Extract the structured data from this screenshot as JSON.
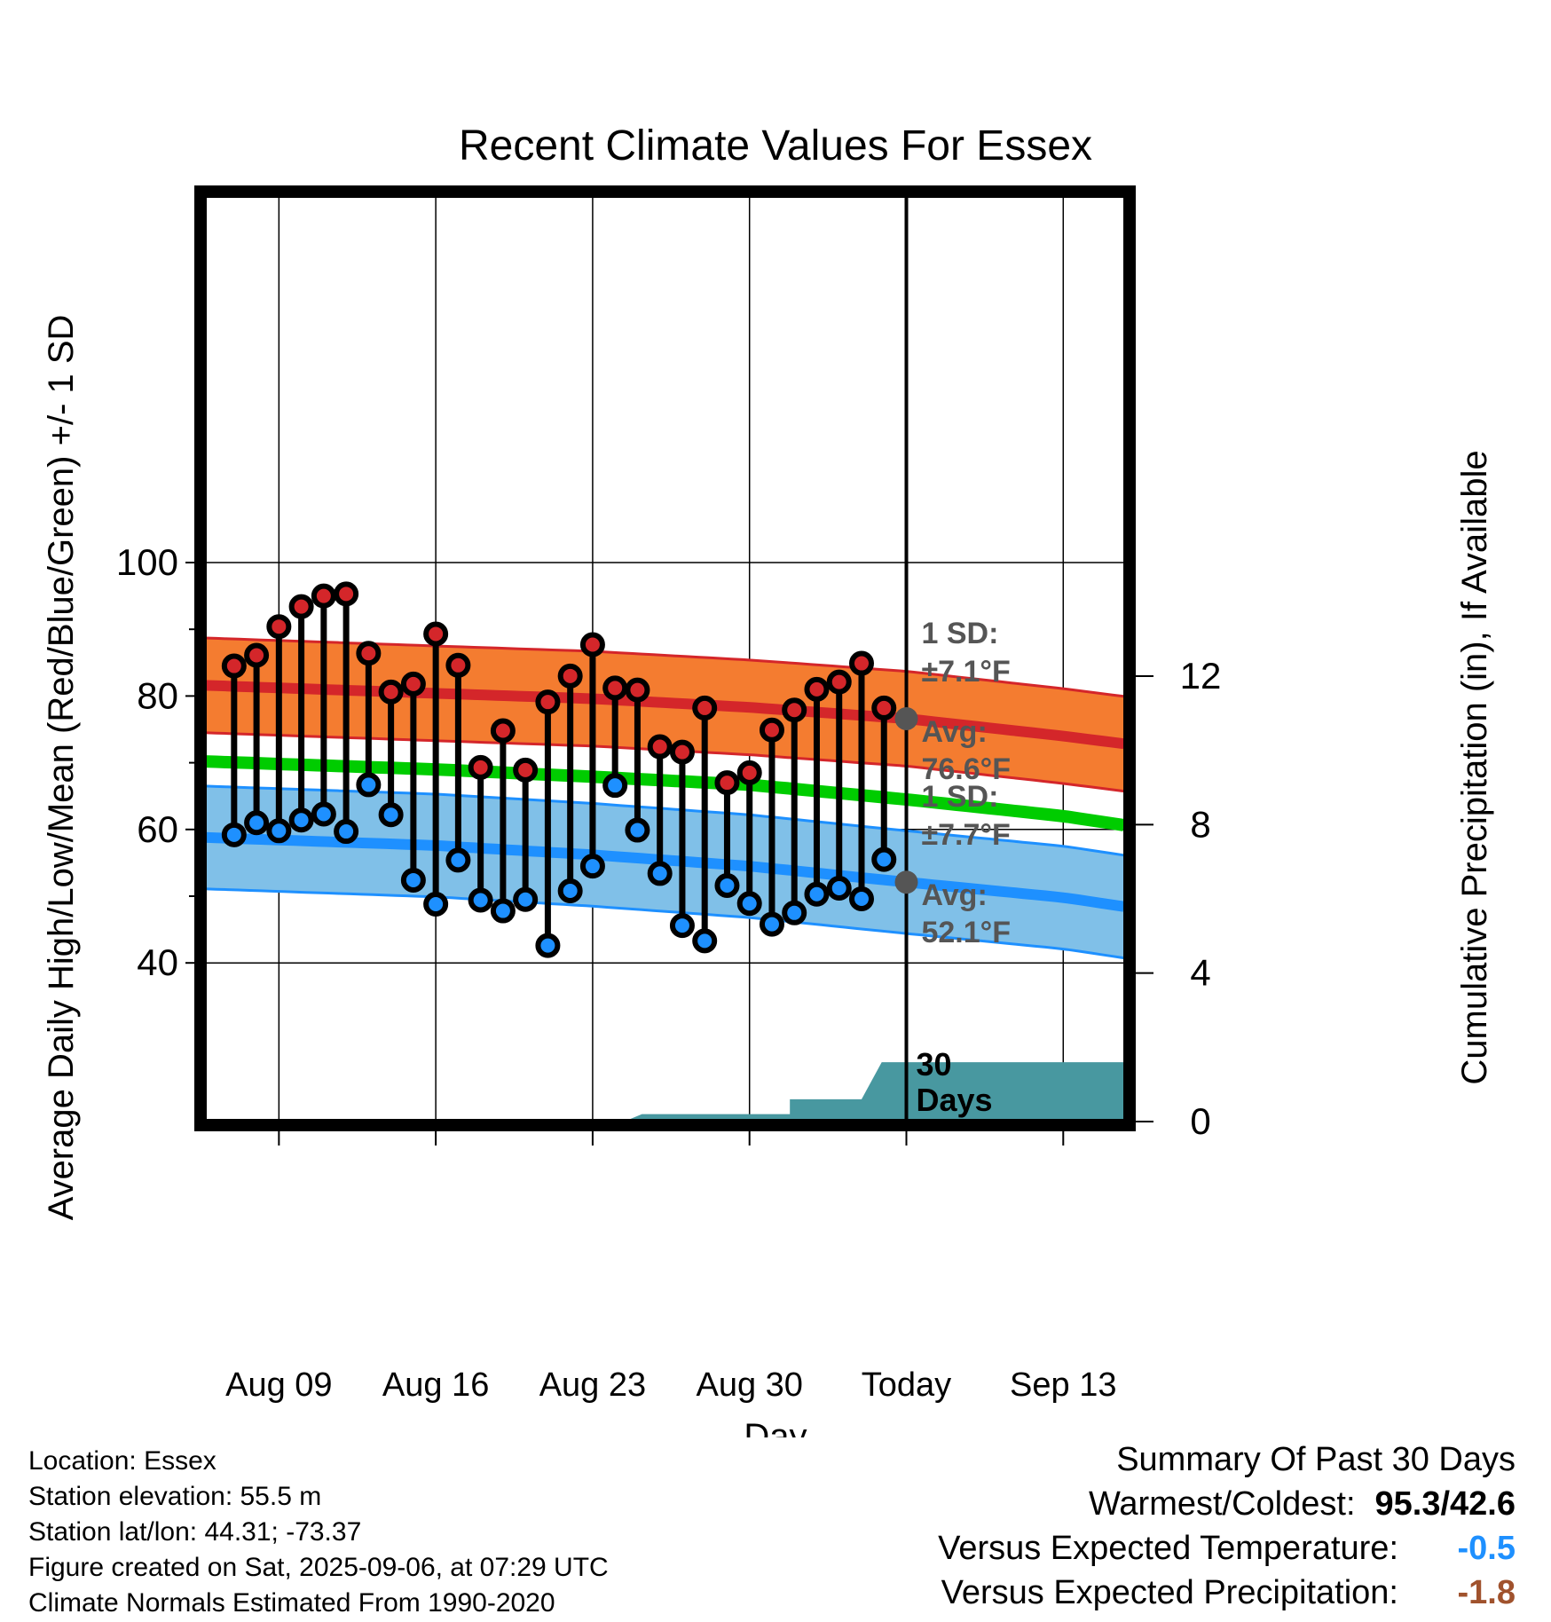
{
  "chart_data": {
    "type": "line",
    "title": "Recent Climate Values For Essex",
    "xlabel": "Day",
    "ylabel": "Average Daily High/Low/Mean (Red/Blue/Green) +/- 1 SD",
    "y2label": "Cumulative Precipitation (in), If Available",
    "x_ticks": [
      "Aug 09",
      "Aug 16",
      "Aug 23",
      "Aug 30",
      "Today",
      "Sep 13"
    ],
    "x_range_days": [
      -31.3,
      9.8
    ],
    "x_tick_days": [
      -28,
      -21,
      -14,
      -7,
      0,
      7
    ],
    "ylim": [
      34.5,
      100
    ],
    "y_ticks": [
      40,
      60,
      80,
      100
    ],
    "y2lim": [
      0,
      30
    ],
    "y2_ticks": [
      0,
      4,
      8,
      12
    ],
    "grid": true,
    "today_line_day": 0,
    "daily_observations": {
      "day_offset": [
        -30,
        -29,
        -28,
        -27,
        -26,
        -25,
        -24,
        -23,
        -22,
        -21,
        -20,
        -19,
        -18,
        -17,
        -16,
        -15,
        -14,
        -13,
        -12,
        -11,
        -10,
        -9,
        -8,
        -7,
        -6,
        -5,
        -4,
        -3,
        -2,
        -1
      ],
      "high": [
        84.5,
        86.1,
        90.4,
        93.4,
        95.0,
        95.3,
        86.4,
        80.6,
        81.8,
        89.3,
        84.6,
        69.3,
        74.8,
        68.9,
        79.1,
        83.0,
        87.7,
        81.2,
        80.9,
        72.4,
        71.6,
        78.2,
        67.0,
        68.5,
        74.9,
        77.9,
        81.0,
        82.1,
        84.9,
        78.2
      ],
      "low": [
        59.2,
        61.0,
        59.8,
        61.4,
        62.3,
        59.7,
        66.7,
        62.2,
        52.4,
        48.8,
        55.4,
        49.4,
        47.8,
        49.5,
        42.6,
        50.8,
        54.5,
        66.6,
        59.9,
        53.4,
        45.6,
        43.3,
        51.6,
        48.9,
        45.8,
        47.5,
        50.3,
        51.2,
        49.6,
        55.5
      ]
    },
    "series": [
      {
        "name": "Average High",
        "color": "#d4262a",
        "day_offset": [
          -31.3,
          -21,
          -14,
          -7,
          0,
          7,
          9.8
        ],
        "mean": [
          81.6,
          80.4,
          79.6,
          78.3,
          76.6,
          74.0,
          72.8
        ],
        "sd": 7.1
      },
      {
        "name": "Average Mean",
        "color": "#00cc00",
        "day_offset": [
          -31.3,
          -21,
          -14,
          -7,
          0,
          7,
          9.8
        ],
        "mean": [
          70.2,
          69.0,
          67.9,
          66.7,
          64.5,
          62.0,
          60.6
        ]
      },
      {
        "name": "Average Low",
        "color": "#1e90ff",
        "day_offset": [
          -31.3,
          -21,
          -14,
          -7,
          0,
          7,
          9.8
        ],
        "mean": [
          58.8,
          57.6,
          56.2,
          54.5,
          52.1,
          49.8,
          48.4
        ],
        "sd": 7.7
      }
    ],
    "precipitation": {
      "color": "#4898a0",
      "day_offset": [
        -12.6,
        -11.8,
        -5.2,
        -5.2,
        -2.0,
        -1.1,
        9.8
      ],
      "cumulative_in": [
        0.0,
        0.2,
        0.2,
        0.6,
        0.6,
        1.6,
        1.6
      ]
    },
    "annotations": {
      "high_sd_label": "1 SD:",
      "high_sd_value": "±7.1°F",
      "high_avg_label": "Avg:",
      "high_avg_value": "76.6°F",
      "low_sd_label": "1 SD:",
      "low_sd_value": "±7.7°F",
      "low_avg_label": "Avg:",
      "low_avg_value": "52.1°F",
      "window_label_1": "30",
      "window_label_2": "Days"
    }
  },
  "info": {
    "location": "Location: Essex",
    "elevation": "Station elevation: 55.5 m",
    "latlon": "Station lat/lon: 44.31; -73.37",
    "created": "Figure created on Sat, 2025-09-06, at 07:29 UTC",
    "normals": "Climate Normals Estimated From 1990-2020"
  },
  "summary": {
    "title": "Summary Of Past 30 Days",
    "warm_cold_label": "Warmest/Coldest:",
    "warm_cold_value": "95.3/42.6",
    "temp_label": "Versus Expected Temperature:",
    "temp_value": "-0.5",
    "temp_color": "#1e90ff",
    "precip_label": "Versus Expected Precipitation:",
    "precip_value": "-1.8",
    "precip_color": "#a0522d"
  }
}
